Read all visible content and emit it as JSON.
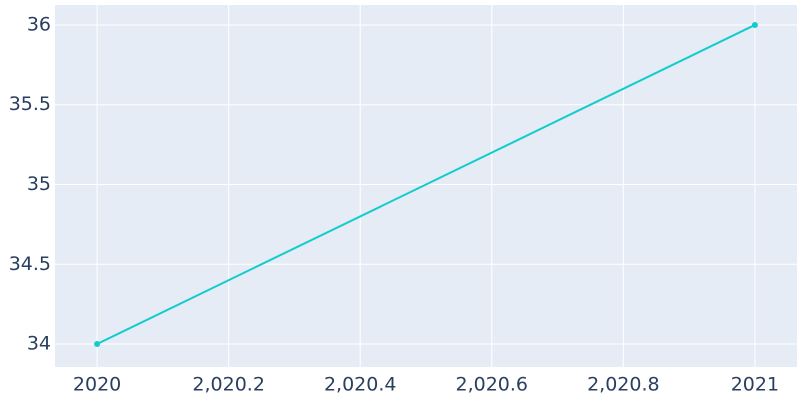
{
  "chart_data": {
    "type": "line",
    "x": [
      2020,
      2021
    ],
    "series": [
      {
        "color": "#12cccc",
        "values": [
          34,
          36
        ]
      }
    ],
    "xlim": [
      2019.936,
      2021.064
    ],
    "ylim": [
      33.856,
      36.125
    ],
    "xticks": [
      2020,
      {
        "value": 2020.2,
        "label": "2,020.2"
      },
      {
        "value": 2020.4,
        "label": "2,020.4"
      },
      {
        "value": 2020.6,
        "label": "2,020.6"
      },
      {
        "value": 2020.8,
        "label": "2,020.8"
      },
      2021
    ],
    "yticks": [
      34,
      34.5,
      35,
      35.5,
      36
    ],
    "grid": true
  }
}
